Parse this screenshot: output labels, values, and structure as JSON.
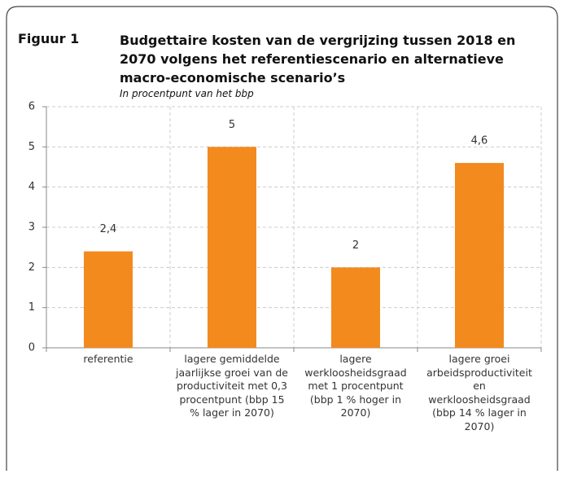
{
  "chart_data": {
    "type": "bar",
    "figure_label": "Figuur 1",
    "title": "Budgettaire kosten van de vergrijzing tussen 2018 en 2070 volgens het referentiescenario en alternatieve macro-economische scenario’s",
    "subtitle": "In procentpunt van het bbp",
    "categories": [
      "referentie",
      "lagere gemiddelde jaarlijkse groei van de productiviteit met 0,3 procentpunt (bbp 15 % lager in 2070)",
      "lagere werkloosheidsgraad met 1 procentpunt (bbp 1 % hoger in 2070)",
      "lagere groei arbeidsproductiviteit en werkloosheidsgraad (bbp 14 % lager in 2070)"
    ],
    "values": [
      2.4,
      5,
      2,
      4.6
    ],
    "value_labels": [
      "2,4",
      "5",
      "2",
      "4,6"
    ],
    "color": "#f28a1e",
    "ylim": [
      0,
      6
    ],
    "yticks": [
      0,
      1,
      2,
      3,
      4,
      5,
      6
    ],
    "grid": true
  }
}
